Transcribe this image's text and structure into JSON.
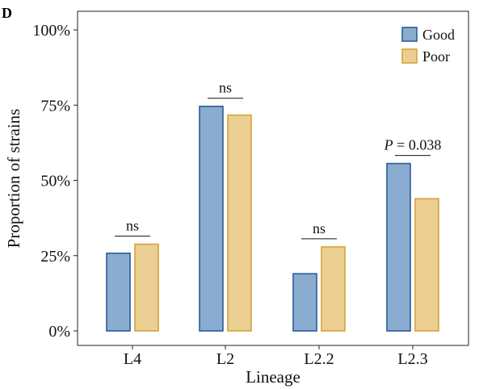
{
  "panel_label": "D",
  "chart_data": {
    "type": "bar",
    "title": "",
    "xlabel": "Lineage",
    "ylabel": "Proportion of strains",
    "categories": [
      "L4",
      "L2",
      "L2.2",
      "L2.3"
    ],
    "series": [
      {
        "name": "Good",
        "values": [
          25.8,
          74.6,
          19.0,
          55.6
        ],
        "color": "#8aacd0",
        "stroke": "#2a5d99"
      },
      {
        "name": "Poor",
        "values": [
          28.8,
          71.7,
          27.9,
          43.9
        ],
        "color": "#ebcf92",
        "stroke": "#d6a23c"
      }
    ],
    "ylim": [
      0,
      100
    ],
    "yticks": [
      0,
      25,
      50,
      75,
      100
    ],
    "ytick_labels": [
      "0%",
      "25%",
      "50%",
      "75%",
      "100%"
    ],
    "legend_position": "top-right",
    "grid": false,
    "annotations": [
      {
        "category": "L4",
        "text": "ns",
        "italic_prefix": "",
        "rest": ""
      },
      {
        "category": "L2",
        "text": "ns",
        "italic_prefix": "",
        "rest": ""
      },
      {
        "category": "L2.2",
        "text": "ns",
        "italic_prefix": "",
        "rest": ""
      },
      {
        "category": "L2.3",
        "text": "",
        "italic_prefix": "P",
        "rest": " = 0.038"
      }
    ]
  }
}
